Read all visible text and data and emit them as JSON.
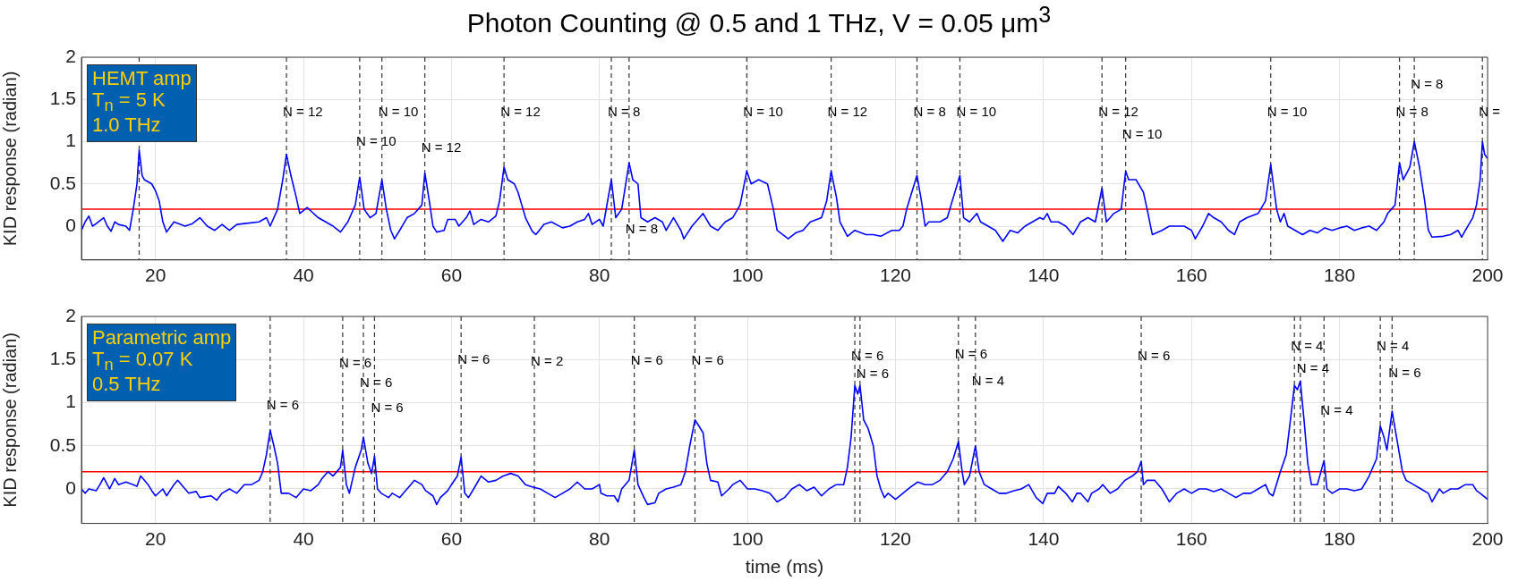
{
  "chart_data": [
    {
      "type": "line",
      "title": "Photon Counting @ 0.5 and 1 THz, V = 0.05 μm$^{3}$",
      "ylabel": "KID response (radian)",
      "xlim": [
        10,
        200
      ],
      "xticks": [
        20,
        40,
        60,
        80,
        100,
        120,
        140,
        160,
        180,
        200
      ],
      "ylim": [
        -0.4,
        2
      ],
      "yticks": [
        0,
        0.5,
        1,
        1.5,
        2
      ],
      "grid": true,
      "legend": false,
      "marker": "none",
      "series": [
        {
          "color": "#0000ff",
          "x": [
            10,
            10.5,
            11,
            11.5,
            12,
            13,
            13.5,
            14,
            14.5,
            15,
            16,
            16.5,
            17,
            17.5,
            17.8,
            18.2,
            18.5,
            19.5,
            20,
            20.5,
            21,
            21.5,
            22.5,
            24,
            25,
            26,
            27,
            28,
            29,
            30,
            31,
            32,
            34,
            35,
            35.5,
            36.5,
            37.2,
            37.7,
            38.3,
            39,
            39.5,
            40.5,
            41,
            42,
            43,
            44,
            45,
            46,
            47,
            47.6,
            48.2,
            49,
            49.8,
            50.6,
            51.2,
            51.8,
            52.3,
            53,
            54,
            55,
            56,
            56.4,
            57,
            57.5,
            58,
            59,
            59.5,
            60.5,
            61,
            62,
            62.5,
            63,
            64,
            65,
            66,
            66.5,
            67.1,
            67.6,
            68.5,
            69,
            69.5,
            70,
            70.9,
            71.4,
            72.5,
            73.5,
            75,
            76,
            77,
            78,
            78.5,
            79,
            80,
            80.5,
            81.6,
            82.2,
            83,
            84,
            84.5,
            85.2,
            85.6,
            86.5,
            87.5,
            88.5,
            89,
            90,
            91,
            91.4,
            92.5,
            93.5,
            94,
            95,
            96,
            97,
            98,
            99,
            99.9,
            100.5,
            101.5,
            102.7,
            103.5,
            104,
            105.5,
            106.5,
            107.5,
            108.5,
            110,
            110.7,
            111.3,
            112,
            112.5,
            113.5,
            114.5,
            116,
            117,
            118,
            119.5,
            120.5,
            121,
            121.5,
            122.9,
            123.5,
            124,
            124.5,
            126,
            127,
            127.5,
            128.7,
            129.2,
            130,
            131,
            131.5,
            132.5,
            133.5,
            134.5,
            135.5,
            136.5,
            137.5,
            138.5,
            139.5,
            140,
            140.5,
            141,
            142,
            143,
            144,
            145,
            146,
            147,
            147.9,
            148.5,
            149.5,
            150.5,
            151.1,
            151.5,
            152.5,
            153.5,
            154,
            154.7,
            156,
            157,
            158,
            159,
            160,
            160.5,
            161.5,
            162.3,
            163,
            164,
            165,
            165.8,
            166.5,
            167.5,
            169,
            170,
            170.7,
            171.5,
            172,
            172.5,
            173,
            174,
            175,
            176,
            177,
            178,
            179,
            180,
            181,
            182,
            183,
            184,
            185,
            186,
            186.5,
            187.5,
            188.1,
            188.6,
            189.5,
            190.1,
            190.8,
            191.5,
            192,
            192.5,
            194,
            195,
            196,
            196.5,
            197,
            198,
            198.5,
            199,
            199.3,
            199.6,
            200
          ],
          "values": [
            -0.05,
            0.05,
            0.12,
            0.0,
            0.03,
            0.1,
            0.0,
            -0.06,
            0.05,
            0.02,
            0.0,
            -0.05,
            0.2,
            0.5,
            0.9,
            0.6,
            0.55,
            0.5,
            0.42,
            0.3,
            0.05,
            -0.07,
            0.05,
            0.0,
            0.03,
            0.1,
            0.0,
            -0.05,
            0.02,
            -0.05,
            0.02,
            0.03,
            0.05,
            0.1,
            0.0,
            0.2,
            0.55,
            0.85,
            0.6,
            0.35,
            0.15,
            0.22,
            0.18,
            0.1,
            0.05,
            0.0,
            -0.07,
            0.05,
            0.25,
            0.58,
            0.2,
            0.1,
            0.15,
            0.55,
            0.2,
            -0.05,
            -0.15,
            -0.05,
            0.1,
            0.15,
            0.25,
            0.63,
            0.3,
            0.0,
            -0.07,
            -0.05,
            0.08,
            0.08,
            0.0,
            0.1,
            0.18,
            0.02,
            0.08,
            0.05,
            0.12,
            0.3,
            0.7,
            0.55,
            0.5,
            0.4,
            0.25,
            0.1,
            -0.06,
            -0.1,
            0.02,
            0.05,
            -0.02,
            0.0,
            0.05,
            0.08,
            0.15,
            0.02,
            0.08,
            0.0,
            0.55,
            0.1,
            0.2,
            0.75,
            0.55,
            0.5,
            0.1,
            0.05,
            0.1,
            0.05,
            -0.05,
            0.1,
            -0.05,
            -0.15,
            0.0,
            0.1,
            0.15,
            0.0,
            -0.05,
            0.05,
            0.1,
            0.25,
            0.65,
            0.5,
            0.55,
            0.5,
            0.2,
            -0.05,
            -0.15,
            -0.08,
            -0.05,
            0.05,
            0.1,
            0.3,
            0.65,
            0.35,
            0.05,
            -0.12,
            -0.05,
            -0.1,
            -0.1,
            -0.12,
            -0.05,
            -0.05,
            0.0,
            0.2,
            0.6,
            0.3,
            0.0,
            0.05,
            0.05,
            0.1,
            0.25,
            0.6,
            0.1,
            0.05,
            0.15,
            0.05,
            0.0,
            -0.05,
            -0.18,
            -0.05,
            -0.08,
            0.0,
            0.05,
            0.1,
            0.08,
            0.15,
            0.05,
            0.05,
            0.0,
            -0.1,
            0.05,
            0.1,
            0.05,
            0.45,
            0.05,
            0.15,
            0.2,
            0.65,
            0.55,
            0.55,
            0.4,
            0.2,
            -0.1,
            -0.05,
            0.0,
            0.0,
            0.0,
            -0.05,
            -0.15,
            0.0,
            0.15,
            0.1,
            0.05,
            -0.05,
            -0.1,
            0.05,
            0.1,
            0.15,
            0.3,
            0.73,
            0.2,
            0.05,
            0.15,
            0.0,
            -0.05,
            -0.1,
            -0.05,
            -0.08,
            -0.02,
            -0.05,
            -0.02,
            0.0,
            -0.05,
            -0.02,
            0.0,
            -0.05,
            0.05,
            0.15,
            0.25,
            0.75,
            0.55,
            0.7,
            1.0,
            0.7,
            0.3,
            -0.05,
            -0.13,
            -0.12,
            -0.1,
            -0.05,
            -0.13,
            -0.05,
            0.1,
            0.25,
            0.55,
            1.0,
            0.85,
            0.8
          ]
        }
      ],
      "ref_lines": [
        {
          "axis": "y",
          "value": 0.2,
          "color": "#ff0000",
          "line_style": "solid"
        },
        {
          "axis": "x",
          "value": 17.8,
          "color": "#333333",
          "line_style": "dashed"
        },
        {
          "axis": "x",
          "value": 37.7,
          "color": "#333333",
          "line_style": "dashed"
        },
        {
          "axis": "x",
          "value": 47.6,
          "color": "#333333",
          "line_style": "dashed"
        },
        {
          "axis": "x",
          "value": 50.6,
          "color": "#333333",
          "line_style": "dashed"
        },
        {
          "axis": "x",
          "value": 56.4,
          "color": "#333333",
          "line_style": "dashed"
        },
        {
          "axis": "x",
          "value": 67.1,
          "color": "#333333",
          "line_style": "dashed"
        },
        {
          "axis": "x",
          "value": 81.6,
          "color": "#333333",
          "line_style": "dashed"
        },
        {
          "axis": "x",
          "value": 84.0,
          "color": "#333333",
          "line_style": "dashed"
        },
        {
          "axis": "x",
          "value": 99.9,
          "color": "#333333",
          "line_style": "dashed"
        },
        {
          "axis": "x",
          "value": 111.3,
          "color": "#333333",
          "line_style": "dashed"
        },
        {
          "axis": "x",
          "value": 122.9,
          "color": "#333333",
          "line_style": "dashed"
        },
        {
          "axis": "x",
          "value": 128.7,
          "color": "#333333",
          "line_style": "dashed"
        },
        {
          "axis": "x",
          "value": 147.9,
          "color": "#333333",
          "line_style": "dashed"
        },
        {
          "axis": "x",
          "value": 151.1,
          "color": "#333333",
          "line_style": "dashed"
        },
        {
          "axis": "x",
          "value": 170.7,
          "color": "#333333",
          "line_style": "dashed"
        },
        {
          "axis": "x",
          "value": 188.1,
          "color": "#333333",
          "line_style": "dashed"
        },
        {
          "axis": "x",
          "value": 190.1,
          "color": "#333333",
          "line_style": "dashed"
        },
        {
          "axis": "x",
          "value": 199.3,
          "color": "#333333",
          "line_style": "dashed"
        }
      ],
      "annotations": [
        "HEMT amp",
        "T$_{n}$ = 5 K",
        "1.0 THz",
        {
          "text": "N = 12",
          "x": 37.7,
          "y": 1.35
        },
        {
          "text": "N = 10",
          "x": 47.6,
          "y": 1.0
        },
        {
          "text": "N = 10",
          "x": 50.6,
          "y": 1.35
        },
        {
          "text": "N = 12",
          "x": 56.4,
          "y": 0.92
        },
        {
          "text": "N = 12",
          "x": 67.1,
          "y": 1.35
        },
        {
          "text": "N = 8",
          "x": 81.6,
          "y": 1.35
        },
        {
          "text": "N = 8",
          "x": 84.0,
          "y": -0.04
        },
        {
          "text": "N = 10",
          "x": 99.9,
          "y": 1.35
        },
        {
          "text": "N = 12",
          "x": 111.3,
          "y": 1.35
        },
        {
          "text": "N = 8",
          "x": 122.9,
          "y": 1.35
        },
        {
          "text": "N = 10",
          "x": 128.7,
          "y": 1.35
        },
        {
          "text": "N = 12",
          "x": 147.9,
          "y": 1.35
        },
        {
          "text": "N = 10",
          "x": 151.1,
          "y": 1.08
        },
        {
          "text": "N = 10",
          "x": 170.7,
          "y": 1.35
        },
        {
          "text": "N = 8",
          "x": 188.1,
          "y": 1.35
        },
        {
          "text": "N = 8",
          "x": 190.1,
          "y": 1.67
        },
        {
          "text": "N =",
          "x": 199.3,
          "y": 1.35
        }
      ]
    },
    {
      "type": "line",
      "xlabel": "time (ms)",
      "ylabel": "KID response (radian)",
      "xlim": [
        10,
        200
      ],
      "xticks": [
        20,
        40,
        60,
        80,
        100,
        120,
        140,
        160,
        180,
        200
      ],
      "ylim": [
        -0.4,
        2
      ],
      "yticks": [
        0,
        0.5,
        1,
        1.5,
        2
      ],
      "grid": true,
      "legend": false,
      "marker": "none",
      "series": [
        {
          "color": "#0000ff",
          "x": [
            10,
            10.5,
            11,
            12,
            12.5,
            13,
            13.8,
            14.5,
            15,
            16,
            17,
            17.5,
            18,
            18.5,
            19,
            19.5,
            20,
            21,
            21.5,
            22.5,
            23,
            24,
            24.5,
            25.5,
            26,
            27.5,
            28.3,
            29,
            30,
            31,
            31.5,
            32,
            33,
            34,
            34.5,
            35,
            35.5,
            36,
            36.5,
            37,
            38,
            39,
            40,
            41,
            42,
            42.5,
            43.3,
            44,
            45,
            45.3,
            45.8,
            46.2,
            47,
            47.8,
            48.1,
            48.7,
            49.2,
            49.6,
            50,
            50.5,
            51.5,
            52,
            53,
            53.5,
            54.5,
            55,
            56,
            56.5,
            57.5,
            58,
            58.5,
            59.5,
            60,
            60.8,
            61.3,
            61.8,
            62.3,
            63,
            64,
            65,
            66,
            67,
            68,
            69,
            70,
            71,
            72,
            73,
            74,
            75,
            76,
            77,
            78,
            79,
            80,
            80.2,
            81,
            82,
            82.5,
            83,
            84,
            84.7,
            85.2,
            86,
            86.5,
            87.5,
            88,
            89,
            90,
            91,
            91.6,
            92.2,
            92.9,
            93.5,
            94,
            94.5,
            95,
            96,
            96.5,
            97.5,
            98,
            99,
            100,
            101,
            102,
            103,
            104,
            105,
            106,
            107,
            108,
            109,
            110,
            111,
            112,
            113,
            113.5,
            114,
            114.5,
            114.9,
            115.2,
            115.7,
            116.3,
            117,
            117.5,
            118,
            118.5,
            119,
            120,
            121,
            122,
            123,
            124,
            125,
            126,
            127,
            127.8,
            128.5,
            129,
            129.3,
            130,
            130.8,
            131.3,
            132,
            133,
            134,
            135,
            136,
            137,
            138,
            139,
            139.9,
            140.5,
            141.5,
            142,
            143,
            143.9,
            144.5,
            145,
            146,
            146.5,
            147.5,
            148,
            149,
            150,
            151,
            152,
            152.7,
            153.2,
            153.5,
            154,
            155,
            156,
            157,
            158,
            159,
            160,
            161,
            162,
            163,
            164,
            165,
            166,
            167,
            168,
            169,
            170,
            170.5,
            171,
            172,
            172.8,
            173.5,
            173.9,
            174.3,
            174.7,
            175.2,
            175.7,
            176.2,
            177,
            177.9,
            178.3,
            179,
            180,
            181,
            182,
            183,
            184,
            185,
            185.5,
            186,
            186.4,
            187.1,
            187.7,
            188.5,
            189,
            190,
            191,
            192,
            192.5,
            193.5,
            194,
            195,
            196,
            197,
            198,
            198.5,
            199,
            200
          ],
          "values": [
            0.0,
            -0.05,
            0.0,
            -0.02,
            0.05,
            0.13,
            0.0,
            0.12,
            0.05,
            0.08,
            0.05,
            0.03,
            0.15,
            0.1,
            0.05,
            -0.02,
            -0.08,
            0.0,
            -0.08,
            0.05,
            0.1,
            0.0,
            -0.05,
            -0.03,
            -0.1,
            -0.08,
            -0.13,
            -0.05,
            0.0,
            -0.05,
            0.0,
            0.05,
            0.05,
            0.1,
            0.2,
            0.4,
            0.68,
            0.5,
            0.3,
            -0.05,
            -0.05,
            -0.1,
            0.0,
            -0.02,
            0.05,
            0.12,
            0.2,
            0.15,
            0.25,
            0.45,
            0.05,
            -0.05,
            0.25,
            0.45,
            0.6,
            0.3,
            0.18,
            0.38,
            0.0,
            -0.05,
            -0.1,
            -0.05,
            -0.1,
            -0.05,
            0.05,
            0.1,
            0.05,
            -0.02,
            -0.08,
            -0.18,
            -0.1,
            -0.02,
            0.05,
            0.15,
            0.37,
            -0.05,
            -0.1,
            0.0,
            0.15,
            0.08,
            0.1,
            0.15,
            0.18,
            0.15,
            0.05,
            0.02,
            0.0,
            -0.05,
            -0.1,
            -0.05,
            0.0,
            0.08,
            0.0,
            0.0,
            0.05,
            -0.05,
            -0.08,
            -0.08,
            -0.15,
            0.0,
            0.1,
            0.45,
            0.05,
            -0.1,
            -0.18,
            -0.16,
            -0.05,
            0.0,
            0.02,
            0.05,
            0.2,
            0.5,
            0.8,
            0.72,
            0.65,
            0.3,
            0.1,
            0.08,
            -0.08,
            0.0,
            0.05,
            0.1,
            0.0,
            0.0,
            -0.02,
            -0.05,
            -0.15,
            -0.1,
            0.0,
            0.05,
            -0.02,
            0.02,
            -0.08,
            0.0,
            0.05,
            0.05,
            0.25,
            0.6,
            1.2,
            1.1,
            1.2,
            0.8,
            0.7,
            0.5,
            0.15,
            0.0,
            -0.1,
            -0.05,
            -0.12,
            -0.05,
            0.02,
            0.08,
            0.05,
            0.05,
            0.1,
            0.2,
            0.35,
            0.55,
            0.2,
            0.05,
            0.15,
            0.5,
            0.2,
            0.05,
            0.0,
            -0.05,
            -0.05,
            -0.02,
            0.0,
            0.05,
            -0.1,
            -0.17,
            -0.05,
            -0.05,
            0.03,
            -0.05,
            -0.15,
            -0.05,
            -0.05,
            -0.15,
            -0.05,
            0.0,
            0.05,
            -0.05,
            0.0,
            0.1,
            0.15,
            0.2,
            0.32,
            0.05,
            0.1,
            0.1,
            0.0,
            -0.15,
            -0.05,
            0.0,
            -0.05,
            0.0,
            0.0,
            -0.03,
            0.0,
            -0.05,
            -0.1,
            -0.05,
            -0.05,
            0.0,
            0.05,
            -0.05,
            -0.08,
            0.2,
            0.4,
            0.9,
            1.2,
            1.15,
            1.25,
            0.8,
            0.3,
            0.05,
            0.05,
            0.33,
            0.0,
            -0.05,
            0.0,
            0.0,
            -0.02,
            0.0,
            0.15,
            0.35,
            0.73,
            0.6,
            0.45,
            0.9,
            0.6,
            0.2,
            0.1,
            0.05,
            0.0,
            -0.05,
            -0.15,
            0.0,
            -0.05,
            0.0,
            0.0,
            0.05,
            0.05,
            -0.02,
            -0.05,
            -0.12
          ]
        }
      ],
      "ref_lines": [
        {
          "axis": "y",
          "value": 0.2,
          "color": "#ff0000",
          "line_style": "solid"
        },
        {
          "axis": "x",
          "value": 35.5,
          "color": "#333333",
          "line_style": "dashed"
        },
        {
          "axis": "x",
          "value": 45.3,
          "color": "#333333",
          "line_style": "dashed"
        },
        {
          "axis": "x",
          "value": 48.1,
          "color": "#333333",
          "line_style": "dashed"
        },
        {
          "axis": "x",
          "value": 49.6,
          "color": "#333333",
          "line_style": "dashed"
        },
        {
          "axis": "x",
          "value": 61.3,
          "color": "#333333",
          "line_style": "dashed"
        },
        {
          "axis": "x",
          "value": 71.2,
          "color": "#333333",
          "line_style": "dashed"
        },
        {
          "axis": "x",
          "value": 84.7,
          "color": "#333333",
          "line_style": "dashed"
        },
        {
          "axis": "x",
          "value": 92.9,
          "color": "#333333",
          "line_style": "dashed"
        },
        {
          "axis": "x",
          "value": 114.5,
          "color": "#333333",
          "line_style": "dashed"
        },
        {
          "axis": "x",
          "value": 115.2,
          "color": "#333333",
          "line_style": "dashed"
        },
        {
          "axis": "x",
          "value": 128.5,
          "color": "#333333",
          "line_style": "dashed"
        },
        {
          "axis": "x",
          "value": 130.8,
          "color": "#333333",
          "line_style": "dashed"
        },
        {
          "axis": "x",
          "value": 153.2,
          "color": "#333333",
          "line_style": "dashed"
        },
        {
          "axis": "x",
          "value": 173.9,
          "color": "#333333",
          "line_style": "dashed"
        },
        {
          "axis": "x",
          "value": 174.7,
          "color": "#333333",
          "line_style": "dashed"
        },
        {
          "axis": "x",
          "value": 177.9,
          "color": "#333333",
          "line_style": "dashed"
        },
        {
          "axis": "x",
          "value": 185.5,
          "color": "#333333",
          "line_style": "dashed"
        },
        {
          "axis": "x",
          "value": 187.1,
          "color": "#333333",
          "line_style": "dashed"
        }
      ],
      "annotations": [
        "Parametric amp",
        "T$_{n}$ = 0.07 K",
        "0.5 THz",
        {
          "text": "N = 6",
          "x": 35.5,
          "y": 0.97
        },
        {
          "text": "N = 6",
          "x": 45.3,
          "y": 1.45
        },
        {
          "text": "N = 6",
          "x": 48.1,
          "y": 1.22
        },
        {
          "text": "N = 6",
          "x": 49.6,
          "y": 0.93
        },
        {
          "text": "N = 6",
          "x": 61.3,
          "y": 1.49
        },
        {
          "text": "N = 2",
          "x": 71.2,
          "y": 1.47
        },
        {
          "text": "N = 6",
          "x": 84.7,
          "y": 1.48
        },
        {
          "text": "N = 6",
          "x": 92.9,
          "y": 1.48
        },
        {
          "text": "N = 6",
          "x": 114.5,
          "y": 1.54
        },
        {
          "text": "N = 6",
          "x": 115.2,
          "y": 1.33
        },
        {
          "text": "N = 6",
          "x": 128.5,
          "y": 1.56
        },
        {
          "text": "N = 4",
          "x": 130.8,
          "y": 1.25
        },
        {
          "text": "N = 6",
          "x": 153.2,
          "y": 1.53
        },
        {
          "text": "N = 4",
          "x": 173.9,
          "y": 1.65
        },
        {
          "text": "N = 4",
          "x": 174.7,
          "y": 1.39
        },
        {
          "text": "N = 4",
          "x": 177.9,
          "y": 0.9
        },
        {
          "text": "N = 4",
          "x": 185.5,
          "y": 1.65
        },
        {
          "text": "N = 6",
          "x": 187.1,
          "y": 1.34
        }
      ]
    }
  ]
}
